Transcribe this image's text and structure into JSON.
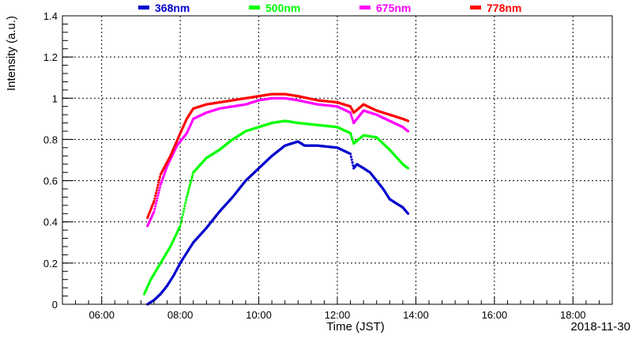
{
  "chart_data": {
    "type": "scatter",
    "title": "",
    "xlabel": "Time (JST)",
    "ylabel": "Intensity (a.u.)",
    "date_label": "2018-11-30",
    "xlim": [
      "05:00",
      "19:00"
    ],
    "ylim": [
      0,
      1.4
    ],
    "x_ticks": [
      "06:00",
      "08:00",
      "10:00",
      "12:00",
      "14:00",
      "16:00",
      "18:00"
    ],
    "y_ticks": [
      "0",
      "0.2",
      "0.4",
      "0.6",
      "0.8",
      "1",
      "1.2",
      "1.4"
    ],
    "grid": true,
    "legend_position": "top",
    "series": [
      {
        "name": "368nm",
        "color": "#0000cc",
        "points": [
          [
            "07:10",
            0.0
          ],
          [
            "07:20",
            0.02
          ],
          [
            "07:30",
            0.05
          ],
          [
            "07:40",
            0.09
          ],
          [
            "07:50",
            0.14
          ],
          [
            "08:00",
            0.2
          ],
          [
            "08:10",
            0.25
          ],
          [
            "08:20",
            0.3
          ],
          [
            "08:40",
            0.37
          ],
          [
            "09:00",
            0.45
          ],
          [
            "09:20",
            0.52
          ],
          [
            "09:40",
            0.6
          ],
          [
            "10:00",
            0.66
          ],
          [
            "10:20",
            0.72
          ],
          [
            "10:40",
            0.77
          ],
          [
            "11:00",
            0.79
          ],
          [
            "11:10",
            0.77
          ],
          [
            "11:30",
            0.77
          ],
          [
            "12:00",
            0.76
          ],
          [
            "12:20",
            0.73
          ],
          [
            "12:25",
            0.66
          ],
          [
            "12:30",
            0.68
          ],
          [
            "12:50",
            0.64
          ],
          [
            "13:10",
            0.56
          ],
          [
            "13:20",
            0.51
          ],
          [
            "13:40",
            0.47
          ],
          [
            "13:48",
            0.44
          ]
        ]
      },
      {
        "name": "500nm",
        "color": "#00ff00",
        "points": [
          [
            "07:05",
            0.05
          ],
          [
            "07:15",
            0.12
          ],
          [
            "07:30",
            0.2
          ],
          [
            "07:45",
            0.28
          ],
          [
            "08:00",
            0.38
          ],
          [
            "08:10",
            0.52
          ],
          [
            "08:20",
            0.64
          ],
          [
            "08:40",
            0.71
          ],
          [
            "09:00",
            0.75
          ],
          [
            "09:20",
            0.8
          ],
          [
            "09:40",
            0.84
          ],
          [
            "10:00",
            0.86
          ],
          [
            "10:20",
            0.88
          ],
          [
            "10:40",
            0.89
          ],
          [
            "11:00",
            0.88
          ],
          [
            "11:30",
            0.87
          ],
          [
            "12:00",
            0.86
          ],
          [
            "12:20",
            0.83
          ],
          [
            "12:25",
            0.78
          ],
          [
            "12:40",
            0.82
          ],
          [
            "13:00",
            0.81
          ],
          [
            "13:20",
            0.75
          ],
          [
            "13:40",
            0.68
          ],
          [
            "13:48",
            0.66
          ]
        ]
      },
      {
        "name": "675nm",
        "color": "#ff00ff",
        "points": [
          [
            "07:10",
            0.38
          ],
          [
            "07:20",
            0.45
          ],
          [
            "07:30",
            0.58
          ],
          [
            "07:40",
            0.67
          ],
          [
            "07:55",
            0.77
          ],
          [
            "08:10",
            0.83
          ],
          [
            "08:20",
            0.9
          ],
          [
            "08:40",
            0.93
          ],
          [
            "09:00",
            0.95
          ],
          [
            "09:20",
            0.96
          ],
          [
            "09:40",
            0.97
          ],
          [
            "10:00",
            0.99
          ],
          [
            "10:20",
            1.0
          ],
          [
            "10:40",
            1.0
          ],
          [
            "11:00",
            0.99
          ],
          [
            "11:30",
            0.97
          ],
          [
            "12:00",
            0.96
          ],
          [
            "12:20",
            0.93
          ],
          [
            "12:25",
            0.88
          ],
          [
            "12:40",
            0.94
          ],
          [
            "13:00",
            0.92
          ],
          [
            "13:20",
            0.89
          ],
          [
            "13:40",
            0.86
          ],
          [
            "13:48",
            0.84
          ]
        ]
      },
      {
        "name": "778nm",
        "color": "#ff0000",
        "points": [
          [
            "07:10",
            0.42
          ],
          [
            "07:20",
            0.5
          ],
          [
            "07:30",
            0.63
          ],
          [
            "07:45",
            0.72
          ],
          [
            "08:00",
            0.83
          ],
          [
            "08:10",
            0.9
          ],
          [
            "08:20",
            0.95
          ],
          [
            "08:40",
            0.97
          ],
          [
            "09:00",
            0.98
          ],
          [
            "09:20",
            0.99
          ],
          [
            "09:40",
            1.0
          ],
          [
            "10:00",
            1.01
          ],
          [
            "10:20",
            1.02
          ],
          [
            "10:40",
            1.02
          ],
          [
            "11:00",
            1.01
          ],
          [
            "11:30",
            0.99
          ],
          [
            "12:00",
            0.98
          ],
          [
            "12:20",
            0.96
          ],
          [
            "12:25",
            0.93
          ],
          [
            "12:40",
            0.97
          ],
          [
            "13:00",
            0.94
          ],
          [
            "13:20",
            0.92
          ],
          [
            "13:40",
            0.9
          ],
          [
            "13:48",
            0.89
          ]
        ]
      }
    ]
  }
}
